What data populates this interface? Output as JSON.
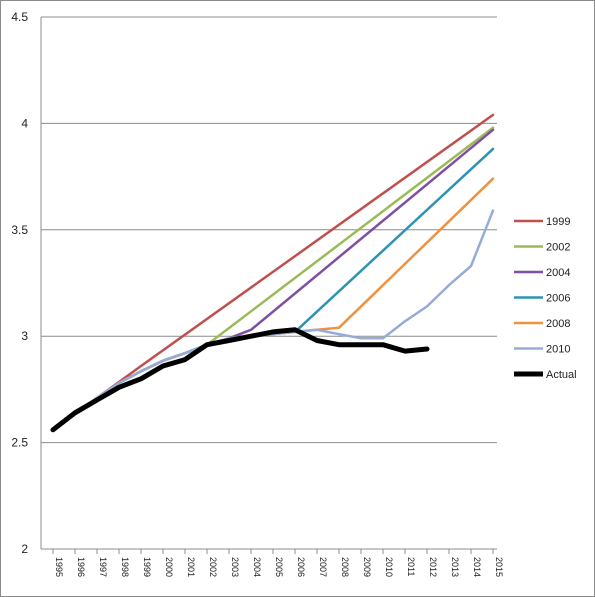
{
  "chart_data": {
    "type": "line",
    "title": "",
    "xlabel": "",
    "ylabel": "",
    "ylim": [
      2,
      4.5
    ],
    "yticks": [
      "2",
      "2.5",
      "3",
      "3.5",
      "4",
      "4.5"
    ],
    "x_start": 1995,
    "x_end": 2015,
    "x_tick_labels": [
      "1995",
      "1996",
      "1997",
      "1998",
      "1999",
      "2000",
      "2001",
      "2002",
      "2003",
      "2004",
      "2005",
      "2006",
      "2007",
      "2008",
      "2009",
      "2010",
      "2011",
      "2012",
      "2013",
      "2014",
      "2015"
    ],
    "grid": true,
    "legend_position": "right",
    "series": [
      {
        "name": "1999",
        "color": "#c0504d",
        "points": [
          [
            1995,
            2.56
          ],
          [
            1996,
            2.635
          ],
          [
            1997,
            2.71
          ],
          [
            1998,
            2.785
          ],
          [
            1999,
            2.86
          ],
          [
            2015,
            4.04
          ]
        ]
      },
      {
        "name": "2002",
        "color": "#9bbb59",
        "points": [
          [
            1995,
            2.56
          ],
          [
            1996,
            2.635
          ],
          [
            1997,
            2.71
          ],
          [
            1998,
            2.78
          ],
          [
            1999,
            2.835
          ],
          [
            2000,
            2.885
          ],
          [
            2001,
            2.92
          ],
          [
            2002,
            2.96
          ],
          [
            2015,
            3.98
          ]
        ]
      },
      {
        "name": "2004",
        "color": "#7f4fa2",
        "points": [
          [
            1995,
            2.56
          ],
          [
            1996,
            2.635
          ],
          [
            1997,
            2.71
          ],
          [
            1998,
            2.78
          ],
          [
            1999,
            2.835
          ],
          [
            2000,
            2.885
          ],
          [
            2001,
            2.92
          ],
          [
            2002,
            2.96
          ],
          [
            2003,
            2.99
          ],
          [
            2004,
            3.03
          ],
          [
            2015,
            3.97
          ]
        ]
      },
      {
        "name": "2006",
        "color": "#2e93b3",
        "points": [
          [
            1995,
            2.56
          ],
          [
            1996,
            2.635
          ],
          [
            1997,
            2.71
          ],
          [
            1998,
            2.78
          ],
          [
            1999,
            2.835
          ],
          [
            2000,
            2.885
          ],
          [
            2001,
            2.92
          ],
          [
            2002,
            2.96
          ],
          [
            2003,
            2.99
          ],
          [
            2004,
            3.0
          ],
          [
            2005,
            3.01
          ],
          [
            2006,
            3.02
          ],
          [
            2015,
            3.88
          ]
        ]
      },
      {
        "name": "2008",
        "color": "#f0913f",
        "points": [
          [
            1995,
            2.56
          ],
          [
            1996,
            2.635
          ],
          [
            1997,
            2.71
          ],
          [
            1998,
            2.78
          ],
          [
            1999,
            2.835
          ],
          [
            2000,
            2.885
          ],
          [
            2001,
            2.92
          ],
          [
            2002,
            2.96
          ],
          [
            2003,
            2.99
          ],
          [
            2004,
            3.0
          ],
          [
            2005,
            3.01
          ],
          [
            2006,
            3.02
          ],
          [
            2007,
            3.03
          ],
          [
            2008,
            3.04
          ],
          [
            2015,
            3.74
          ]
        ]
      },
      {
        "name": "2010",
        "color": "#96acd8",
        "points": [
          [
            1995,
            2.56
          ],
          [
            1996,
            2.635
          ],
          [
            1997,
            2.71
          ],
          [
            1998,
            2.78
          ],
          [
            1999,
            2.835
          ],
          [
            2000,
            2.885
          ],
          [
            2001,
            2.92
          ],
          [
            2002,
            2.96
          ],
          [
            2003,
            2.99
          ],
          [
            2004,
            3.0
          ],
          [
            2005,
            3.01
          ],
          [
            2006,
            3.02
          ],
          [
            2007,
            3.03
          ],
          [
            2008,
            3.01
          ],
          [
            2009,
            2.99
          ],
          [
            2010,
            2.99
          ],
          [
            2011,
            3.07
          ],
          [
            2012,
            3.14
          ],
          [
            2013,
            3.24
          ],
          [
            2014,
            3.33
          ],
          [
            2015,
            3.59
          ]
        ]
      },
      {
        "name": "Actual",
        "color": "#000000",
        "points": [
          [
            1995,
            2.56
          ],
          [
            1996,
            2.64
          ],
          [
            1997,
            2.7
          ],
          [
            1998,
            2.76
          ],
          [
            1999,
            2.8
          ],
          [
            2000,
            2.86
          ],
          [
            2001,
            2.89
          ],
          [
            2002,
            2.96
          ],
          [
            2003,
            2.98
          ],
          [
            2004,
            3.0
          ],
          [
            2005,
            3.02
          ],
          [
            2006,
            3.03
          ],
          [
            2007,
            2.98
          ],
          [
            2008,
            2.96
          ],
          [
            2009,
            2.96
          ],
          [
            2010,
            2.96
          ],
          [
            2011,
            2.93
          ],
          [
            2012,
            2.94
          ]
        ]
      }
    ]
  }
}
